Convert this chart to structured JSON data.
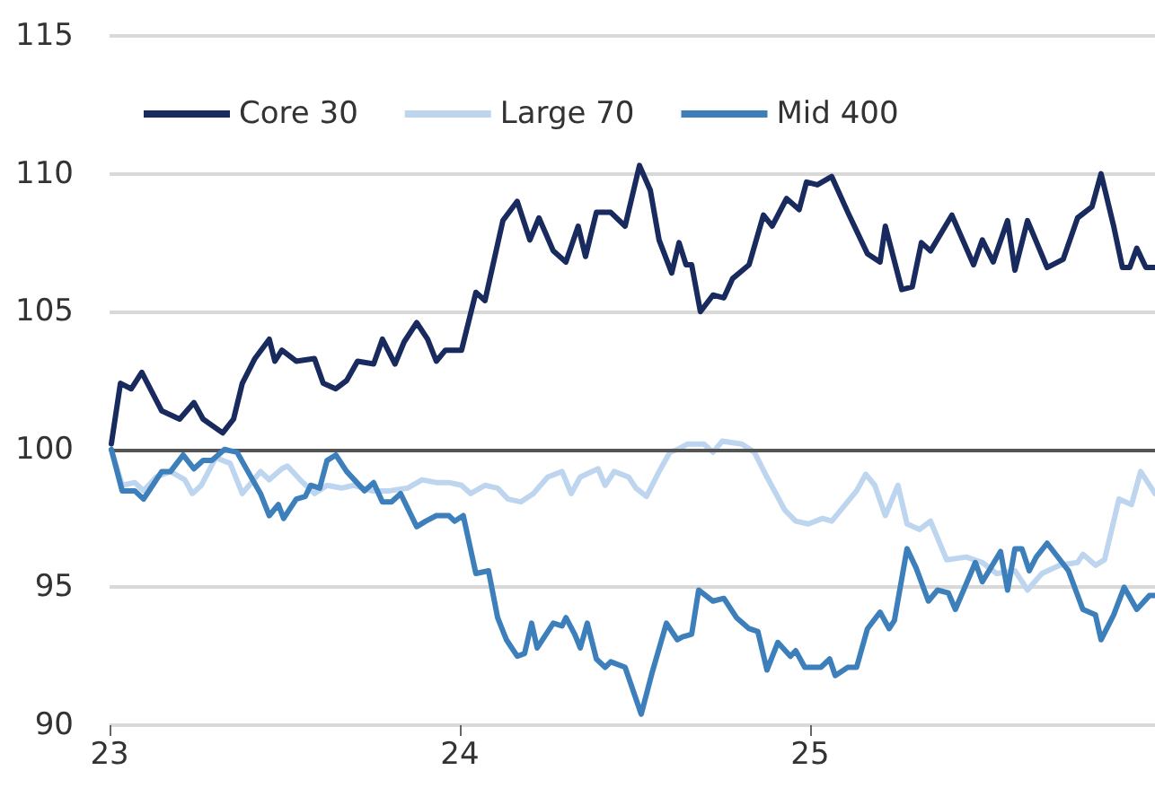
{
  "chart_data": {
    "type": "line",
    "xlim": [
      23,
      25.985
    ],
    "xticks": [
      23,
      24,
      25
    ],
    "ylim": [
      90,
      115
    ],
    "yticks": [
      90,
      95,
      100,
      105,
      110,
      115
    ],
    "grid": "y",
    "legend": "top left",
    "marker": "none",
    "line_style": "solid",
    "ref_lines": [
      {
        "axis": "y",
        "value": 100,
        "color": "#555555"
      }
    ],
    "series": [
      {
        "name": "Core 30",
        "color": "#182a5e",
        "x": [
          23.005,
          23.031,
          23.062,
          23.092,
          23.149,
          23.2,
          23.241,
          23.267,
          23.323,
          23.354,
          23.379,
          23.415,
          23.456,
          23.472,
          23.492,
          23.533,
          23.585,
          23.61,
          23.646,
          23.677,
          23.708,
          23.754,
          23.779,
          23.815,
          23.841,
          23.877,
          23.908,
          23.933,
          23.959,
          24.005,
          24.046,
          24.072,
          24.123,
          24.164,
          24.2,
          24.226,
          24.267,
          24.303,
          24.338,
          24.359,
          24.39,
          24.431,
          24.472,
          24.513,
          24.544,
          24.569,
          24.605,
          24.626,
          24.646,
          24.662,
          24.687,
          24.723,
          24.754,
          24.779,
          24.826,
          24.867,
          24.892,
          24.933,
          24.969,
          24.99,
          25.021,
          25.062,
          25.108,
          25.164,
          25.2,
          25.215,
          25.262,
          25.292,
          25.318,
          25.344,
          25.405,
          25.467,
          25.492,
          25.523,
          25.564,
          25.585,
          25.621,
          25.677,
          25.723,
          25.764,
          25.805,
          25.831,
          25.867,
          25.892,
          25.913,
          25.933,
          25.959,
          25.985
        ],
        "values": [
          100.2,
          102.4,
          102.2,
          102.8,
          101.4,
          101.1,
          101.7,
          101.1,
          100.6,
          101.1,
          102.4,
          103.3,
          104.0,
          103.2,
          103.6,
          103.2,
          103.3,
          102.4,
          102.2,
          102.5,
          103.2,
          103.1,
          104.0,
          103.1,
          103.9,
          104.6,
          104.0,
          103.2,
          103.6,
          103.6,
          105.7,
          105.4,
          108.3,
          109.0,
          107.6,
          108.4,
          107.2,
          106.8,
          108.1,
          107.0,
          108.6,
          108.6,
          108.1,
          110.3,
          109.4,
          107.6,
          106.4,
          107.5,
          106.7,
          106.7,
          105.0,
          105.6,
          105.5,
          106.2,
          106.7,
          108.5,
          108.1,
          109.1,
          108.7,
          109.7,
          109.6,
          109.9,
          108.6,
          107.1,
          106.8,
          108.1,
          105.8,
          105.9,
          107.5,
          107.2,
          108.5,
          106.7,
          107.6,
          106.8,
          108.3,
          106.5,
          108.3,
          106.6,
          106.9,
          108.4,
          108.8,
          110.0,
          108.1,
          106.6,
          106.6,
          107.3,
          106.6,
          106.6
        ]
      },
      {
        "name": "Large 70",
        "color": "#bdd5ee",
        "x": [
          23.005,
          23.036,
          23.072,
          23.097,
          23.133,
          23.174,
          23.215,
          23.236,
          23.262,
          23.303,
          23.344,
          23.379,
          23.431,
          23.456,
          23.492,
          23.508,
          23.544,
          23.585,
          23.621,
          23.662,
          23.697,
          23.749,
          23.8,
          23.851,
          23.892,
          23.933,
          23.969,
          24.005,
          24.031,
          24.072,
          24.108,
          24.138,
          24.174,
          24.21,
          24.251,
          24.292,
          24.318,
          24.344,
          24.395,
          24.415,
          24.441,
          24.482,
          24.503,
          24.533,
          24.569,
          24.6,
          24.621,
          24.651,
          24.697,
          24.723,
          24.749,
          24.805,
          24.841,
          24.877,
          24.928,
          24.959,
          24.995,
          25.036,
          25.062,
          25.133,
          25.159,
          25.185,
          25.215,
          25.251,
          25.277,
          25.313,
          25.344,
          25.39,
          25.446,
          25.492,
          25.533,
          25.585,
          25.621,
          25.662,
          25.713,
          25.764,
          25.779,
          25.815,
          25.841,
          25.882,
          25.918,
          25.944,
          25.985
        ],
        "values": [
          100,
          98.7,
          98.8,
          98.5,
          99.0,
          99.2,
          98.9,
          98.4,
          98.7,
          99.7,
          99.5,
          98.4,
          99.2,
          98.9,
          99.3,
          99.4,
          98.9,
          98.4,
          98.7,
          98.6,
          98.7,
          98.5,
          98.5,
          98.6,
          98.9,
          98.8,
          98.8,
          98.7,
          98.4,
          98.7,
          98.6,
          98.2,
          98.1,
          98.4,
          99.0,
          99.2,
          98.4,
          99.0,
          99.3,
          98.7,
          99.2,
          99.0,
          98.6,
          98.3,
          99.2,
          99.9,
          100.0,
          100.2,
          100.2,
          99.9,
          100.3,
          100.2,
          99.9,
          99.0,
          97.8,
          97.4,
          97.3,
          97.5,
          97.4,
          98.5,
          99.1,
          98.7,
          97.6,
          98.7,
          97.3,
          97.1,
          97.4,
          96.0,
          96.1,
          95.9,
          95.5,
          95.6,
          94.9,
          95.5,
          95.8,
          95.9,
          96.2,
          95.8,
          96.0,
          98.2,
          98.0,
          99.2,
          98.4
        ]
      },
      {
        "name": "Mid 400",
        "color": "#3d7fbb",
        "x": [
          23.005,
          23.036,
          23.072,
          23.097,
          23.123,
          23.149,
          23.174,
          23.21,
          23.241,
          23.267,
          23.292,
          23.328,
          23.364,
          23.395,
          23.431,
          23.456,
          23.482,
          23.497,
          23.533,
          23.559,
          23.574,
          23.6,
          23.621,
          23.646,
          23.677,
          23.728,
          23.754,
          23.779,
          23.805,
          23.831,
          23.877,
          23.903,
          23.933,
          23.969,
          23.985,
          24.01,
          24.046,
          24.082,
          24.108,
          24.133,
          24.164,
          24.185,
          24.205,
          24.221,
          24.267,
          24.292,
          24.303,
          24.328,
          24.344,
          24.364,
          24.39,
          24.415,
          24.431,
          24.472,
          24.518,
          24.549,
          24.59,
          24.621,
          24.636,
          24.662,
          24.682,
          24.723,
          24.754,
          24.79,
          24.826,
          24.851,
          24.877,
          24.908,
          24.944,
          24.959,
          24.985,
          25.031,
          25.056,
          25.072,
          25.108,
          25.133,
          25.164,
          25.2,
          25.226,
          25.241,
          25.277,
          25.303,
          25.338,
          25.364,
          25.395,
          25.415,
          25.472,
          25.492,
          25.544,
          25.564,
          25.585,
          25.605,
          25.626,
          25.646,
          25.677,
          25.738,
          25.779,
          25.815,
          25.831,
          25.867,
          25.897,
          25.933,
          25.969,
          25.985
        ],
        "values": [
          100,
          98.5,
          98.5,
          98.2,
          98.7,
          99.2,
          99.2,
          99.8,
          99.3,
          99.6,
          99.6,
          100.0,
          99.9,
          99.2,
          98.4,
          97.6,
          98.0,
          97.5,
          98.2,
          98.3,
          98.7,
          98.6,
          99.6,
          99.8,
          99.2,
          98.5,
          98.8,
          98.1,
          98.1,
          98.4,
          97.2,
          97.4,
          97.6,
          97.6,
          97.4,
          97.6,
          95.5,
          95.6,
          93.9,
          93.1,
          92.5,
          92.6,
          93.7,
          92.8,
          93.7,
          93.6,
          93.9,
          93.3,
          92.8,
          93.7,
          92.4,
          92.1,
          92.3,
          92.1,
          90.4,
          91.9,
          93.7,
          93.1,
          93.2,
          93.3,
          94.9,
          94.5,
          94.6,
          93.9,
          93.5,
          93.4,
          92.0,
          93.0,
          92.5,
          92.7,
          92.1,
          92.1,
          92.4,
          91.8,
          92.1,
          92.1,
          93.5,
          94.1,
          93.5,
          93.8,
          96.4,
          95.7,
          94.5,
          94.9,
          94.8,
          94.2,
          95.9,
          95.2,
          96.3,
          94.9,
          96.4,
          96.4,
          95.6,
          96.1,
          96.6,
          95.6,
          94.2,
          94.0,
          93.1,
          94.0,
          95.0,
          94.2,
          94.7,
          94.7
        ]
      }
    ]
  }
}
